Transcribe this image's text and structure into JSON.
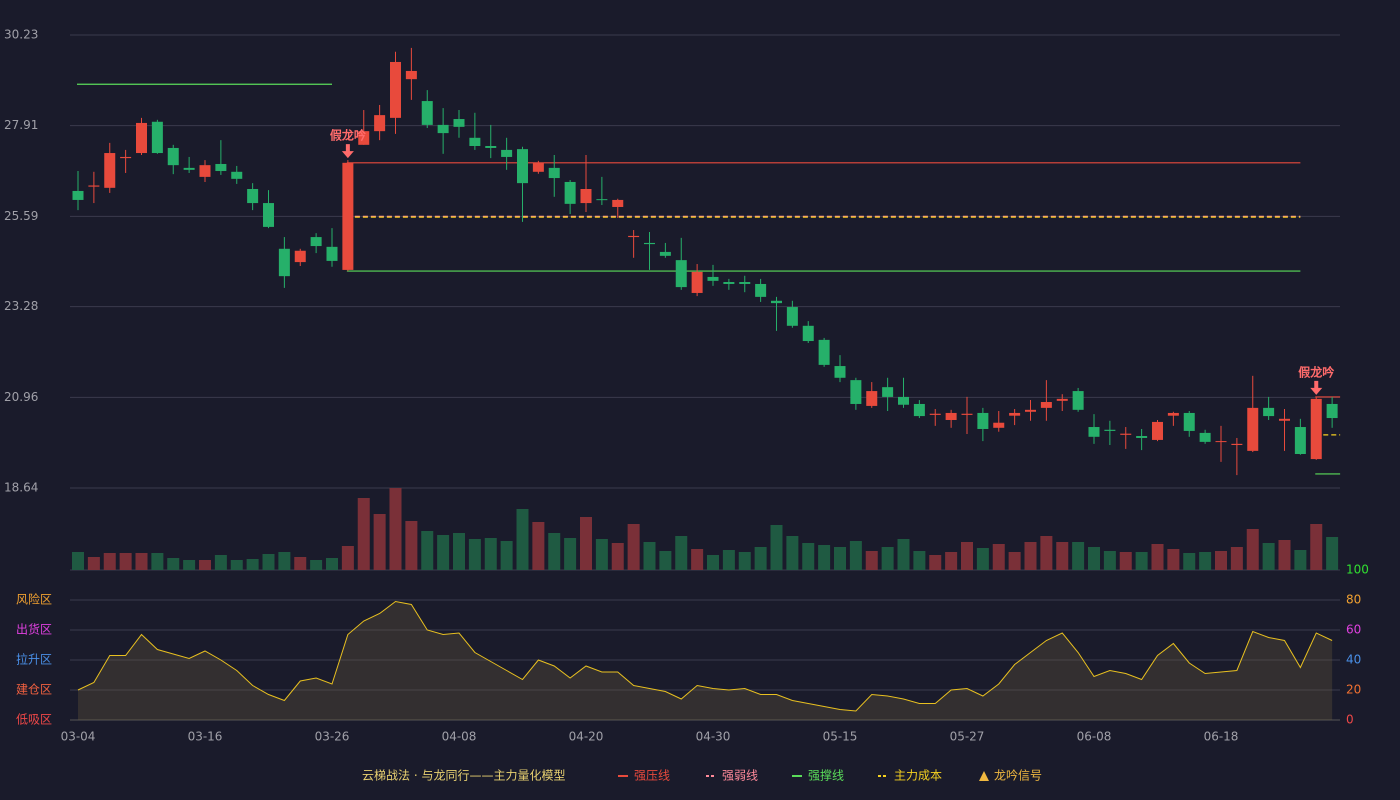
{
  "chart_data": {
    "type": "candlestick",
    "ylim": [
      18.64,
      30.23
    ],
    "yticks": [
      30.23,
      27.91,
      25.59,
      23.28,
      20.96,
      18.64
    ],
    "up_color": "#e84a3c",
    "down_color": "#26b06a",
    "categories": [
      "03-04",
      null,
      null,
      null,
      null,
      null,
      null,
      null,
      "03-16",
      null,
      null,
      null,
      null,
      null,
      null,
      null,
      "03-26",
      null,
      null,
      null,
      null,
      null,
      null,
      null,
      "04-08",
      null,
      null,
      null,
      null,
      null,
      null,
      null,
      "04-20",
      null,
      null,
      null,
      null,
      null,
      null,
      null,
      "04-30",
      null,
      null,
      null,
      null,
      null,
      null,
      null,
      "05-15",
      null,
      null,
      null,
      null,
      null,
      null,
      null,
      "05-27",
      null,
      null,
      null,
      null,
      null,
      null,
      null,
      "06-08",
      null,
      null,
      null,
      null,
      null,
      null,
      null,
      "06-18",
      null,
      null,
      null,
      null,
      null,
      null,
      null
    ],
    "ohlc": [
      [
        26.24,
        26.75,
        25.75,
        26.01
      ],
      [
        26.35,
        26.73,
        25.93,
        26.38
      ],
      [
        26.32,
        27.47,
        26.19,
        27.21
      ],
      [
        27.08,
        27.29,
        26.7,
        27.11
      ],
      [
        27.21,
        28.11,
        27.16,
        27.98
      ],
      [
        28.01,
        28.06,
        27.19,
        27.21
      ],
      [
        27.34,
        27.42,
        26.67,
        26.9
      ],
      [
        26.83,
        27.11,
        26.7,
        26.78
      ],
      [
        26.6,
        27.03,
        26.47,
        26.9
      ],
      [
        26.93,
        27.54,
        26.65,
        26.75
      ],
      [
        26.73,
        26.88,
        26.42,
        26.55
      ],
      [
        26.29,
        26.44,
        25.75,
        25.93
      ],
      [
        25.93,
        26.26,
        25.29,
        25.32
      ],
      [
        24.76,
        25.06,
        23.76,
        24.06
      ],
      [
        24.42,
        24.76,
        24.32,
        24.71
      ],
      [
        25.06,
        25.16,
        24.65,
        24.83
      ],
      [
        24.81,
        25.29,
        24.3,
        24.45
      ],
      [
        24.22,
        27.03,
        24.19,
        26.96
      ],
      [
        27.42,
        28.31,
        27.42,
        27.77
      ],
      [
        27.77,
        28.44,
        27.54,
        28.18
      ],
      [
        28.11,
        29.8,
        27.7,
        29.54
      ],
      [
        29.1,
        29.9,
        28.57,
        29.31
      ],
      [
        28.54,
        28.82,
        27.85,
        27.93
      ],
      [
        27.93,
        28.36,
        27.19,
        27.72
      ],
      [
        28.08,
        28.31,
        27.6,
        27.88
      ],
      [
        27.6,
        28.24,
        27.29,
        27.39
      ],
      [
        27.39,
        27.93,
        27.08,
        27.34
      ],
      [
        27.29,
        27.6,
        26.78,
        27.11
      ],
      [
        27.31,
        27.37,
        25.45,
        26.44
      ],
      [
        26.73,
        27.01,
        26.68,
        26.96
      ],
      [
        26.83,
        27.16,
        26.09,
        26.57
      ],
      [
        26.47,
        26.52,
        25.65,
        25.91
      ],
      [
        25.93,
        27.16,
        25.7,
        26.29
      ],
      [
        26.03,
        26.6,
        25.88,
        26.01
      ],
      [
        25.83,
        26.04,
        25.55,
        26.01
      ],
      [
        25.06,
        25.24,
        24.53,
        25.09
      ],
      [
        24.91,
        25.19,
        24.22,
        24.88
      ],
      [
        24.68,
        24.91,
        24.53,
        24.58
      ],
      [
        24.47,
        25.04,
        23.71,
        23.78
      ],
      [
        23.63,
        24.37,
        23.55,
        24.17
      ],
      [
        24.04,
        24.35,
        23.81,
        23.94
      ],
      [
        23.91,
        23.99,
        23.71,
        23.86
      ],
      [
        23.91,
        24.07,
        23.65,
        23.86
      ],
      [
        23.86,
        23.99,
        23.4,
        23.53
      ],
      [
        23.43,
        23.53,
        22.66,
        23.37
      ],
      [
        23.27,
        23.43,
        22.74,
        22.79
      ],
      [
        22.79,
        22.91,
        22.35,
        22.4
      ],
      [
        22.43,
        22.48,
        21.74,
        21.79
      ],
      [
        21.76,
        22.04,
        21.35,
        21.46
      ],
      [
        21.4,
        21.46,
        20.64,
        20.79
      ],
      [
        20.74,
        21.35,
        20.69,
        21.12
      ],
      [
        21.22,
        21.46,
        20.61,
        20.97
      ],
      [
        20.97,
        21.46,
        20.69,
        20.77
      ],
      [
        20.79,
        20.89,
        20.43,
        20.48
      ],
      [
        20.51,
        20.66,
        20.23,
        20.54
      ],
      [
        20.38,
        20.64,
        20.18,
        20.56
      ],
      [
        20.51,
        20.97,
        20.02,
        20.54
      ],
      [
        20.56,
        20.69,
        19.84,
        20.15
      ],
      [
        20.18,
        20.61,
        20.08,
        20.31
      ],
      [
        20.49,
        20.66,
        20.25,
        20.56
      ],
      [
        20.59,
        20.89,
        20.36,
        20.64
      ],
      [
        20.69,
        21.4,
        20.36,
        20.84
      ],
      [
        20.87,
        21.04,
        20.61,
        20.92
      ],
      [
        21.12,
        21.2,
        20.59,
        20.64
      ],
      [
        20.2,
        20.53,
        19.77,
        19.95
      ],
      [
        20.13,
        20.36,
        19.74,
        20.1
      ],
      [
        20.0,
        20.2,
        19.64,
        20.03
      ],
      [
        19.97,
        20.15,
        19.61,
        19.92
      ],
      [
        19.87,
        20.38,
        19.84,
        20.33
      ],
      [
        20.49,
        20.59,
        20.23,
        20.56
      ],
      [
        20.56,
        20.61,
        19.95,
        20.1
      ],
      [
        20.05,
        20.13,
        19.77,
        19.82
      ],
      [
        19.82,
        20.23,
        19.31,
        19.84
      ],
      [
        19.74,
        19.92,
        18.97,
        19.77
      ],
      [
        19.59,
        21.51,
        19.56,
        20.69
      ],
      [
        20.69,
        20.97,
        20.38,
        20.48
      ],
      [
        20.36,
        20.66,
        19.59,
        20.41
      ],
      [
        20.2,
        20.41,
        19.49,
        19.51
      ],
      [
        19.38,
        20.97,
        19.36,
        20.92
      ],
      [
        20.79,
        20.97,
        20.18,
        20.43
      ]
    ],
    "volume": [
      18,
      13,
      17,
      17,
      17,
      17,
      12,
      10,
      10,
      15,
      10,
      11,
      16,
      18,
      13,
      10,
      12,
      24,
      72,
      56,
      82,
      49,
      39,
      35,
      37,
      31,
      32,
      29,
      61,
      48,
      37,
      32,
      53,
      31,
      27,
      46,
      28,
      19,
      34,
      21,
      15,
      20,
      18,
      23,
      45,
      34,
      27,
      25,
      23,
      29,
      19,
      23,
      31,
      19,
      15,
      18,
      28,
      22,
      26,
      18,
      28,
      34,
      28,
      28,
      23,
      19,
      18,
      18,
      26,
      21,
      17,
      18,
      19,
      23,
      41,
      27,
      30,
      20,
      46,
      33
    ],
    "volume_up_color": "#7a3038",
    "volume_down_color": "#1f5a42",
    "levels": [
      {
        "name": "强压线",
        "color": "#e84a3c",
        "dash": false,
        "segments": [
          {
            "value": 26.96,
            "from": 17,
            "to": 77
          },
          {
            "value": 20.97,
            "from": 78,
            "to": 79
          }
        ]
      },
      {
        "name": "强弱线",
        "color": "#ff8a9a",
        "dash": true,
        "segments": [
          {
            "value": 25.59,
            "from": 17,
            "to": 77
          }
        ]
      },
      {
        "name": "强撑线",
        "color": "#5adc5a",
        "dash": false,
        "segments": [
          {
            "value": 28.97,
            "from": 0,
            "to": 16
          },
          {
            "value": 24.19,
            "from": 17,
            "to": 77
          },
          {
            "value": 19.0,
            "from": 78,
            "to": 79
          }
        ]
      },
      {
        "name": "主力成本",
        "color": "#f5d020",
        "dash": true,
        "segments": [
          {
            "value": 25.57,
            "from": 17,
            "to": 77
          },
          {
            "value": 20.0,
            "from": 78,
            "to": 79
          }
        ]
      }
    ],
    "signal_legend": {
      "name": "龙吟信号",
      "color": "#f0b840"
    },
    "signals": [
      {
        "label": "假龙吟",
        "index": 17,
        "color": "#ff6b6b"
      },
      {
        "label": "假龙吟",
        "index": 78,
        "color": "#ff6b6b"
      }
    ],
    "oscillator": {
      "ylim": [
        0,
        100
      ],
      "yticks": [
        0,
        20,
        40,
        60,
        80,
        100
      ],
      "ytick_colors": [
        "#f04848",
        "#f07030",
        "#4a90e8",
        "#e040e0",
        "#f0a030",
        "#30e030"
      ],
      "zones": [
        {
          "label": "风险区",
          "value": 80,
          "color": "#f0a030"
        },
        {
          "label": "出货区",
          "value": 60,
          "color": "#e040e0"
        },
        {
          "label": "拉升区",
          "value": 40,
          "color": "#4a90e8"
        },
        {
          "label": "建仓区",
          "value": 20,
          "color": "#f06040"
        },
        {
          "label": "低吸区",
          "value": 0,
          "color": "#f04848"
        }
      ],
      "color": "#e8c020",
      "values": [
        20,
        25,
        43,
        43,
        57,
        47,
        44,
        41,
        46,
        40,
        33,
        23,
        17,
        13,
        26,
        28,
        24,
        57,
        66,
        71,
        79,
        77,
        60,
        57,
        58,
        45,
        39,
        33,
        27,
        40,
        36,
        28,
        36,
        32,
        32,
        23,
        21,
        19,
        14,
        23,
        21,
        20,
        21,
        17,
        17,
        13,
        11,
        9,
        7,
        6,
        17,
        16,
        14,
        11,
        11,
        20,
        21,
        16,
        24,
        37,
        45,
        53,
        58,
        45,
        29,
        33,
        31,
        27,
        43,
        51,
        38,
        31,
        32,
        33,
        59,
        55,
        53,
        35,
        58,
        53
      ]
    },
    "legend_title": "云梯战法 · 与龙同行——主力量化模型"
  }
}
